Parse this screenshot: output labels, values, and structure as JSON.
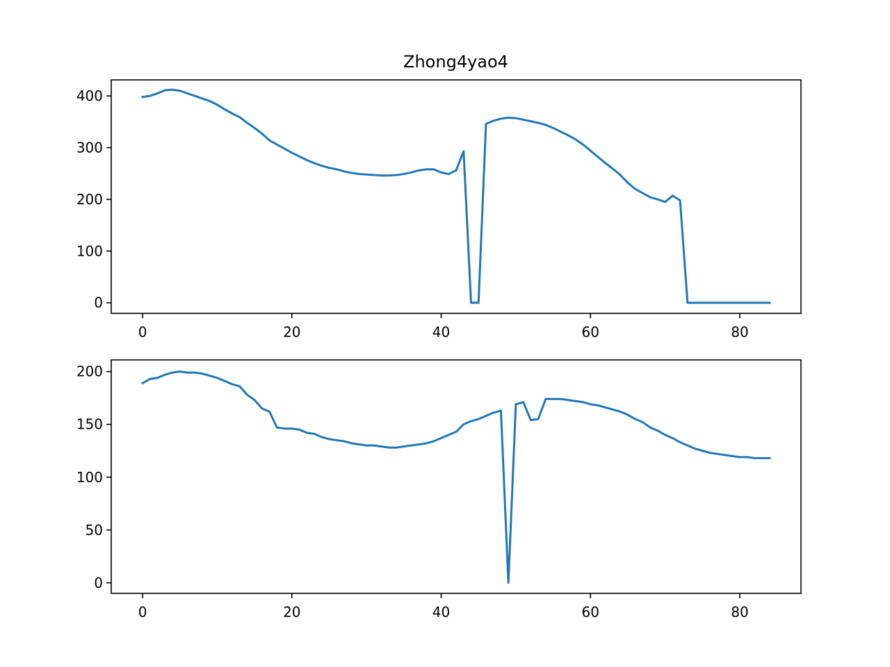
{
  "chart_data": [
    {
      "type": "line",
      "title": "Zhong4yao4",
      "xlabel": "",
      "ylabel": "",
      "xlim": [
        -4.2,
        88.2
      ],
      "ylim": [
        -20.5,
        431
      ],
      "xticks": [
        0,
        20,
        40,
        60,
        80
      ],
      "yticks": [
        0,
        100,
        200,
        300,
        400
      ],
      "grid": false,
      "series": [
        {
          "color": "#1f77b4",
          "x": [
            0,
            1,
            2,
            3,
            4,
            5,
            6,
            7,
            8,
            9,
            10,
            11,
            12,
            13,
            14,
            15,
            16,
            17,
            18,
            19,
            20,
            21,
            22,
            23,
            24,
            25,
            26,
            27,
            28,
            29,
            30,
            31,
            32,
            33,
            34,
            35,
            36,
            37,
            38,
            39,
            40,
            41,
            42,
            43,
            44,
            45,
            46,
            47,
            48,
            49,
            50,
            51,
            52,
            53,
            54,
            55,
            56,
            57,
            58,
            59,
            60,
            61,
            62,
            63,
            64,
            65,
            66,
            67,
            68,
            69,
            70,
            71,
            72,
            73,
            74,
            75,
            76,
            77,
            78,
            79,
            80,
            81,
            82,
            83,
            84
          ],
          "y": [
            398,
            400,
            405,
            411,
            412,
            410,
            405,
            400,
            395,
            390,
            383,
            374,
            366,
            359,
            348,
            338,
            327,
            314,
            306,
            298,
            290,
            283,
            276,
            270,
            265,
            261,
            258,
            254,
            251,
            249,
            248,
            247,
            246,
            246,
            247,
            249,
            252,
            256,
            258,
            258,
            252,
            249,
            256,
            293,
            0,
            0,
            346,
            352,
            356,
            358,
            357,
            354,
            351,
            348,
            344,
            338,
            331,
            324,
            316,
            306,
            294,
            282,
            270,
            259,
            247,
            232,
            220,
            212,
            204,
            200,
            195,
            207,
            198,
            0,
            0,
            0,
            0,
            0,
            0,
            0,
            0,
            0,
            0,
            0,
            0
          ]
        }
      ]
    },
    {
      "type": "line",
      "title": "",
      "xlabel": "",
      "ylabel": "",
      "xlim": [
        -4.2,
        88.2
      ],
      "ylim": [
        -10,
        211
      ],
      "xticks": [
        0,
        20,
        40,
        60,
        80
      ],
      "yticks": [
        0,
        50,
        100,
        150,
        200
      ],
      "grid": false,
      "series": [
        {
          "color": "#1f77b4",
          "x": [
            0,
            1,
            2,
            3,
            4,
            5,
            6,
            7,
            8,
            9,
            10,
            11,
            12,
            13,
            14,
            15,
            16,
            17,
            18,
            19,
            20,
            21,
            22,
            23,
            24,
            25,
            26,
            27,
            28,
            29,
            30,
            31,
            32,
            33,
            34,
            35,
            36,
            37,
            38,
            39,
            40,
            41,
            42,
            43,
            44,
            45,
            46,
            47,
            48,
            49,
            50,
            51,
            52,
            53,
            54,
            55,
            56,
            57,
            58,
            59,
            60,
            61,
            62,
            63,
            64,
            65,
            66,
            67,
            68,
            69,
            70,
            71,
            72,
            73,
            74,
            75,
            76,
            77,
            78,
            79,
            80,
            81,
            82,
            83,
            84
          ],
          "y": [
            189,
            193,
            194,
            197,
            199,
            200,
            199,
            199,
            198,
            196,
            194,
            191,
            188,
            186,
            178,
            173,
            165,
            162,
            147,
            146,
            146,
            145,
            142,
            141,
            138,
            136,
            135,
            134,
            132,
            131,
            130,
            130,
            129,
            128,
            128,
            129,
            130,
            131,
            132,
            134,
            137,
            140,
            143,
            150,
            153,
            155,
            158,
            161,
            163,
            0,
            169,
            171,
            154,
            155,
            174,
            174,
            174,
            173,
            172,
            171,
            169,
            168,
            166,
            164,
            162,
            159,
            155,
            152,
            147,
            144,
            140,
            137,
            133,
            130,
            127,
            125,
            123,
            122,
            121,
            120,
            119,
            119,
            118,
            118,
            118
          ]
        }
      ]
    }
  ]
}
